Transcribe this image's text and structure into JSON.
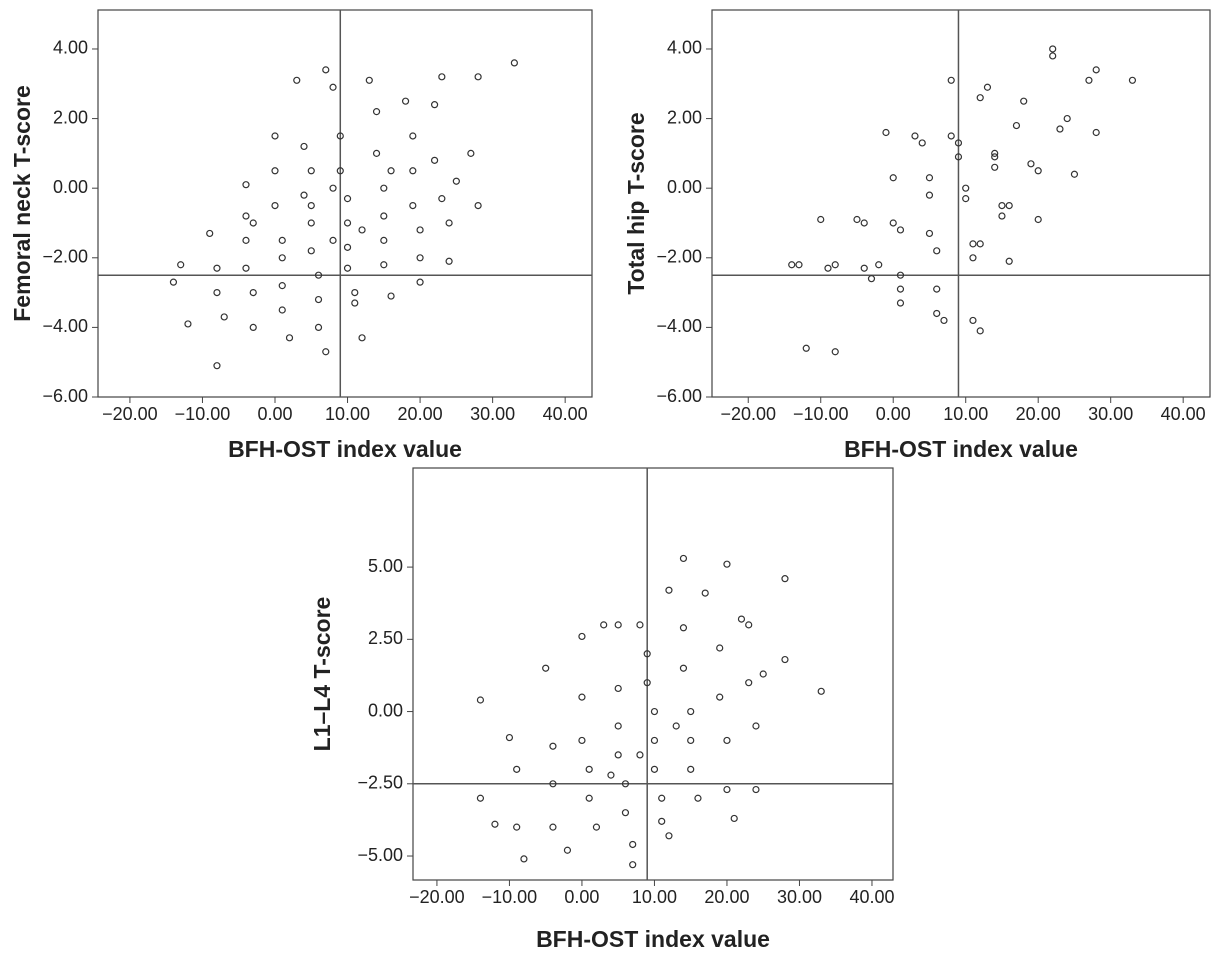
{
  "chart_data": [
    {
      "type": "scatter",
      "xlabel": "BFH-OST index value",
      "ylabel": "Femoral neck T-score",
      "color": "#333333",
      "xlim": [
        -24.4,
        43.7
      ],
      "ylim": [
        -6,
        5.12
      ],
      "xline": 9,
      "yline": -2.5,
      "xticks": [
        {
          "value": -20,
          "label": "−20.00"
        },
        {
          "value": -10,
          "label": "−10.00"
        },
        {
          "value": 0,
          "label": "0.00"
        },
        {
          "value": 10,
          "label": "10.00"
        },
        {
          "value": 20,
          "label": "20.00"
        },
        {
          "value": 30,
          "label": "30.00"
        },
        {
          "value": 40,
          "label": "40.00"
        }
      ],
      "yticks": [
        {
          "value": -6,
          "label": "−6.00"
        },
        {
          "value": -4,
          "label": "−4.00"
        },
        {
          "value": -2,
          "label": "−2.00"
        },
        {
          "value": 0,
          "label": "0.00"
        },
        {
          "value": 2,
          "label": "2.00"
        },
        {
          "value": 4,
          "label": "4.00"
        }
      ],
      "x": [
        -14,
        -13,
        -12,
        -9,
        -8,
        -8,
        -8,
        -7,
        -4,
        -4,
        -4,
        -4,
        -3,
        -3,
        -3,
        0,
        0,
        0,
        1,
        1,
        1,
        1,
        2,
        3,
        4,
        5,
        5,
        5,
        5,
        6,
        6,
        6,
        7,
        7,
        8,
        8,
        9,
        9,
        10,
        10,
        10,
        10,
        11,
        11,
        12,
        13,
        14,
        14,
        15,
        15,
        15,
        15,
        16,
        18,
        19,
        19,
        19,
        20,
        20,
        20,
        22,
        22,
        23,
        23,
        24,
        24,
        25,
        28,
        28,
        33,
        27,
        12,
        8,
        4,
        16
      ],
      "values": [
        -2.7,
        -2.2,
        -3.9,
        -1.3,
        -2.3,
        -3,
        -5.1,
        -3.7,
        0.1,
        -0.8,
        -1.5,
        -2.3,
        -3,
        -4,
        -1,
        1.5,
        0.5,
        -0.5,
        -1.5,
        -2,
        -2.8,
        -3.5,
        -4.3,
        3.1,
        1.2,
        0.5,
        -0.5,
        -1,
        -1.8,
        -2.5,
        -3.2,
        -4,
        -4.7,
        3.4,
        2.9,
        0,
        1.5,
        0.5,
        -0.3,
        -1,
        -1.7,
        -2.3,
        -3,
        -3.3,
        -4.3,
        3.1,
        2.2,
        1,
        0,
        -0.8,
        -1.5,
        -2.2,
        -3.1,
        2.5,
        1.5,
        0.5,
        -0.5,
        -1.2,
        -2,
        -2.7,
        2.4,
        0.8,
        3.2,
        -0.3,
        -1,
        -2.1,
        0.2,
        3.2,
        -0.5,
        3.6,
        1.0,
        -1.2,
        -1.5,
        -0.2,
        0.5
      ]
    },
    {
      "type": "scatter",
      "xlabel": "BFH-OST index value",
      "ylabel": "Total hip T-score",
      "color": "#333333",
      "xlim": [
        -25,
        43.7
      ],
      "ylim": [
        -6,
        5.12
      ],
      "xline": 9,
      "yline": -2.5,
      "xticks": [
        {
          "value": -20,
          "label": "−20.00"
        },
        {
          "value": -10,
          "label": "−10.00"
        },
        {
          "value": 0,
          "label": "0.00"
        },
        {
          "value": 10,
          "label": "10.00"
        },
        {
          "value": 20,
          "label": "20.00"
        },
        {
          "value": 30,
          "label": "30.00"
        },
        {
          "value": 40,
          "label": "40.00"
        }
      ],
      "yticks": [
        {
          "value": -6,
          "label": "−6.00"
        },
        {
          "value": -4,
          "label": "−4.00"
        },
        {
          "value": -2,
          "label": "−2.00"
        },
        {
          "value": 0,
          "label": "0.00"
        },
        {
          "value": 2,
          "label": "2.00"
        },
        {
          "value": 4,
          "label": "4.00"
        }
      ],
      "x": [
        -14,
        -13,
        -12,
        -10,
        -9,
        -8,
        -8,
        -5,
        -4,
        -4,
        -3,
        -2,
        -1,
        0,
        0,
        1,
        1,
        1,
        1,
        3,
        4,
        5,
        5,
        5,
        6,
        6,
        6,
        7,
        8,
        8,
        9,
        9,
        10,
        10,
        11,
        11,
        11,
        12,
        12,
        13,
        14,
        14,
        15,
        15,
        16,
        17,
        18,
        19,
        20,
        20,
        22,
        22,
        23,
        24,
        25,
        28,
        28,
        33,
        27,
        12,
        14,
        16
      ],
      "values": [
        -2.2,
        -2.2,
        -4.6,
        -0.9,
        -2.3,
        -2.2,
        -4.7,
        -0.9,
        -1,
        -2.3,
        -2.6,
        -2.2,
        1.6,
        0.3,
        -1,
        -1.2,
        -2.5,
        -2.9,
        -3.3,
        1.5,
        1.3,
        0.3,
        -0.2,
        -1.3,
        -1.8,
        -2.9,
        -3.6,
        -3.8,
        3.1,
        1.5,
        1.3,
        0.9,
        0,
        -0.3,
        -1.6,
        -2,
        -3.8,
        -4.1,
        2.6,
        2.9,
        1,
        0.6,
        -0.5,
        -0.8,
        -2.1,
        1.8,
        2.5,
        0.7,
        0.5,
        -0.9,
        4,
        3.8,
        1.7,
        2,
        0.4,
        3.4,
        1.6,
        3.1,
        3.1,
        -1.6,
        0.9,
        -0.5
      ]
    },
    {
      "type": "scatter",
      "xlabel": "BFH-OST index value",
      "ylabel": "L1–L4 T-score",
      "color": "#333333",
      "xlim": [
        -23.3,
        42.9
      ],
      "ylim": [
        -5.83,
        8.43
      ],
      "xline": 9,
      "yline": -2.5,
      "xticks": [
        {
          "value": -20,
          "label": "−20.00"
        },
        {
          "value": -10,
          "label": "−10.00"
        },
        {
          "value": 0,
          "label": "0.00"
        },
        {
          "value": 10,
          "label": "10.00"
        },
        {
          "value": 20,
          "label": "20.00"
        },
        {
          "value": 30,
          "label": "30.00"
        },
        {
          "value": 40,
          "label": "40.00"
        }
      ],
      "yticks": [
        {
          "value": -5,
          "label": "−5.00"
        },
        {
          "value": -2.5,
          "label": "−2.50"
        },
        {
          "value": 0,
          "label": "0.00"
        },
        {
          "value": 2.5,
          "label": "2.50"
        },
        {
          "value": 5,
          "label": "5.00"
        }
      ],
      "x": [
        -14,
        -14,
        -12,
        -10,
        -9,
        -9,
        -8,
        -5,
        -4,
        -4,
        -4,
        -2,
        0,
        0,
        0,
        1,
        1,
        2,
        3,
        5,
        5,
        5,
        5,
        6,
        6,
        7,
        7,
        8,
        9,
        9,
        10,
        10,
        10,
        11,
        11,
        12,
        12,
        14,
        14,
        14,
        15,
        15,
        15,
        16,
        17,
        19,
        19,
        20,
        20,
        20,
        21,
        22,
        23,
        23,
        24,
        24,
        25,
        28,
        28,
        33,
        8,
        13,
        4
      ],
      "values": [
        0.4,
        -3,
        -3.9,
        -0.9,
        -2,
        -4,
        -5.1,
        1.5,
        -1.2,
        -2.5,
        -4,
        -4.8,
        2.6,
        0.5,
        -1,
        -2,
        -3,
        -4,
        3,
        3,
        0.8,
        -0.5,
        -1.5,
        -2.5,
        -3.5,
        -4.6,
        -5.3,
        3,
        2,
        1,
        0,
        -1,
        -2,
        -3,
        -3.8,
        -4.3,
        4.2,
        5.3,
        2.9,
        1.5,
        0,
        -1,
        -2,
        -3,
        4.1,
        2.2,
        0.5,
        5.1,
        -1,
        -2.7,
        -3.7,
        3.2,
        3,
        1,
        -0.5,
        -2.7,
        1.3,
        4.6,
        1.8,
        0.7,
        -1.5,
        -0.5,
        -2.2
      ]
    }
  ]
}
